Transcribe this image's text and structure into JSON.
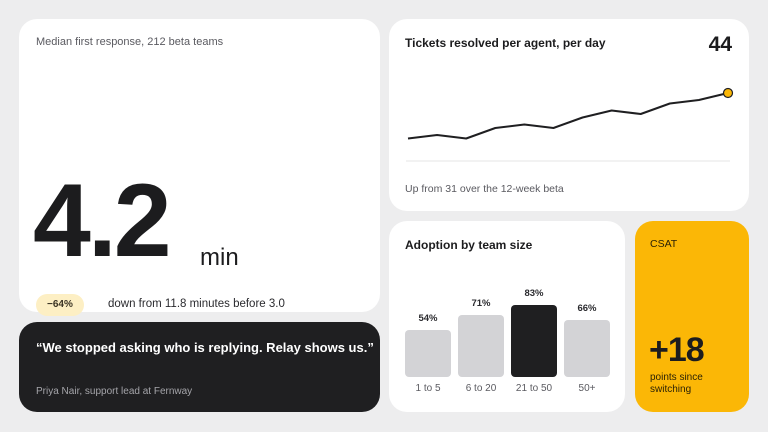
{
  "hero": {
    "caption": "Median first response, 212 beta teams",
    "value": "4.2",
    "unit": "min",
    "badge": "−64%",
    "change_text": "down from 11.8 minutes before 3.0"
  },
  "quote": {
    "text": "“We stopped asking who is replying. Relay shows us.”",
    "author": "Priya Nair, support lead at Fernway"
  },
  "tickets": {
    "title": "Tickets resolved per agent, per day",
    "value": "44",
    "subtitle": "Up from 31 over the 12-week beta"
  },
  "adoption": {
    "title": "Adoption by team size"
  },
  "csat": {
    "label": "CSAT",
    "value": "+18",
    "caption": "points since switching"
  },
  "colors": {
    "background": "#ededee",
    "card": "#ffffff",
    "dark": "#1f1f21",
    "accent": "#fbb706",
    "badge": "#fdefc4",
    "bar": "#d3d3d6"
  },
  "chart_data": [
    {
      "type": "line",
      "title": "Tickets resolved per agent, per day",
      "x": [
        1,
        2,
        3,
        4,
        5,
        6,
        7,
        8,
        9,
        10,
        11,
        12
      ],
      "values": [
        31,
        32,
        31,
        34,
        35,
        34,
        37,
        39,
        38,
        41,
        42,
        44
      ],
      "ylim": [
        28,
        46
      ],
      "grid": false,
      "highlight_last": true
    },
    {
      "type": "bar",
      "title": "Adoption by team size",
      "categories": [
        "1 to 5",
        "6 to 20",
        "21 to 50",
        "50+"
      ],
      "values": [
        54,
        71,
        83,
        66
      ],
      "data_labels": [
        "54%",
        "71%",
        "83%",
        "66%"
      ],
      "highlight_index": 2,
      "ylim": [
        0,
        100
      ]
    }
  ]
}
